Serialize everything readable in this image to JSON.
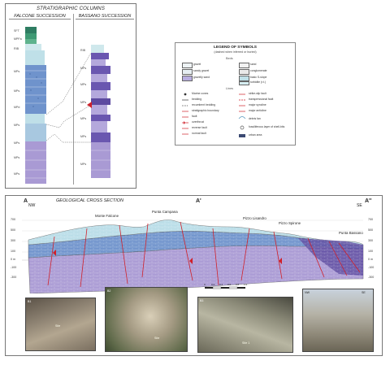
{
  "strat": {
    "title": "STRATIGRAPHIC COLUMNS",
    "falcone_title": "FALCONE SUCCESSION",
    "bassano_title": "BASSANO SUCCESSION",
    "falcone_labels": [
      "SFT",
      "MPFa",
      "RIB",
      "MPs",
      "MPs",
      "MPd",
      "MPs",
      "MPs",
      "MPs",
      "MPs"
    ],
    "bassano_labels": [
      "RIB",
      "MPs",
      "MPs",
      "MPs",
      "MPs",
      "MPs",
      "MPs"
    ]
  },
  "legend": {
    "title": "LEGEND OF SYMBOLS",
    "subtitle": "(dashed when inferred or buried)",
    "facies_head": "Beds",
    "items_left": [
      "gravel",
      "sandy gravel",
      "gravelly sand"
    ],
    "items_right": [
      "sand",
      "conglomerate",
      "basic S-slope",
      "turbidite (r.t.)"
    ],
    "lines_head": "Lines",
    "lines_left": [
      "Marine cones",
      "bedding",
      "recumbent bedding",
      "stratigraphic boundary",
      "fault",
      "overthrust",
      "reverse fault",
      "normal fault"
    ],
    "lines_right": [
      "strike-slip fault",
      "transpressional fault",
      "major syncline",
      "major anticline",
      "debris fan",
      "fossiliferous layer of shell-bits",
      "urban area"
    ]
  },
  "section": {
    "title": "GEOLOGICAL CROSS SECTION",
    "endpoint_a": "A",
    "endpoint_a_prime": "A'",
    "endpoint_a_double": "A''",
    "dir_left": "NW",
    "dir_right": "SE",
    "y_left": [
      "700",
      "500",
      "300",
      "100",
      "0 m",
      "-100",
      "-300"
    ],
    "y_right": [
      "700",
      "500",
      "300",
      "100",
      "0 m",
      "-100",
      "-300"
    ],
    "places": [
      "Monte Falcone",
      "Punta Campana",
      "Pizzo Lisandro",
      "Pizzo Spirone",
      "Punta Bassano"
    ],
    "scale_ticks": [
      "0",
      "0.2",
      "0.4",
      "0.6",
      "0.8",
      "1.0"
    ],
    "photos": [
      {
        "tag": "B1",
        "note": "Site"
      },
      {
        "tag": "B2",
        "note": "Site"
      },
      {
        "tag": "B3",
        "note": "Site 1"
      },
      {
        "tag": "NW",
        "note": "SE"
      }
    ]
  },
  "colors": {
    "light_blue": "#b9dde7",
    "mid_blue": "#6f93cc",
    "violet": "#a99ad4",
    "dark_violet": "#5d4aa0",
    "teal": "#3f8f76",
    "red": "#d0202a"
  }
}
